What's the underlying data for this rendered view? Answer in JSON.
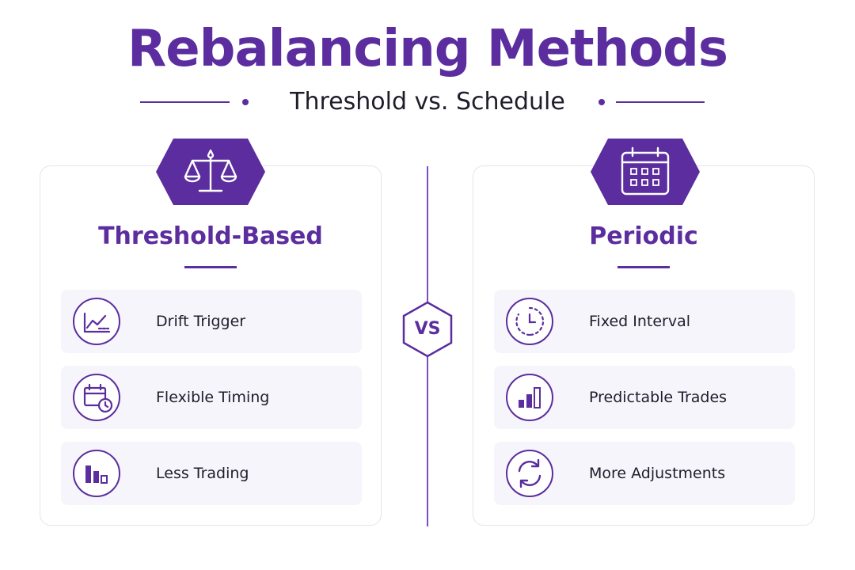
{
  "header": {
    "title": "Rebalancing Methods",
    "subtitle": "Threshold vs. Schedule"
  },
  "vs_label": "VS",
  "left_panel": {
    "title": "Threshold-Based",
    "badge_icon": "scales-icon",
    "items": [
      {
        "label": "Drift Trigger",
        "icon": "line-chart-icon"
      },
      {
        "label": "Flexible Timing",
        "icon": "calendar-clock-icon"
      },
      {
        "label": "Less Trading",
        "icon": "bar-chart-icon"
      }
    ]
  },
  "right_panel": {
    "title": "Periodic",
    "badge_icon": "calendar-icon",
    "items": [
      {
        "label": "Fixed Interval",
        "icon": "clock-icon"
      },
      {
        "label": "Predictable Trades",
        "icon": "ascending-bars-icon"
      },
      {
        "label": "More Adjustments",
        "icon": "refresh-icon"
      }
    ]
  },
  "colors": {
    "accent": "#5b2d9e",
    "row_background": "#f6f5fb",
    "panel_border": "#e6e3ef"
  }
}
